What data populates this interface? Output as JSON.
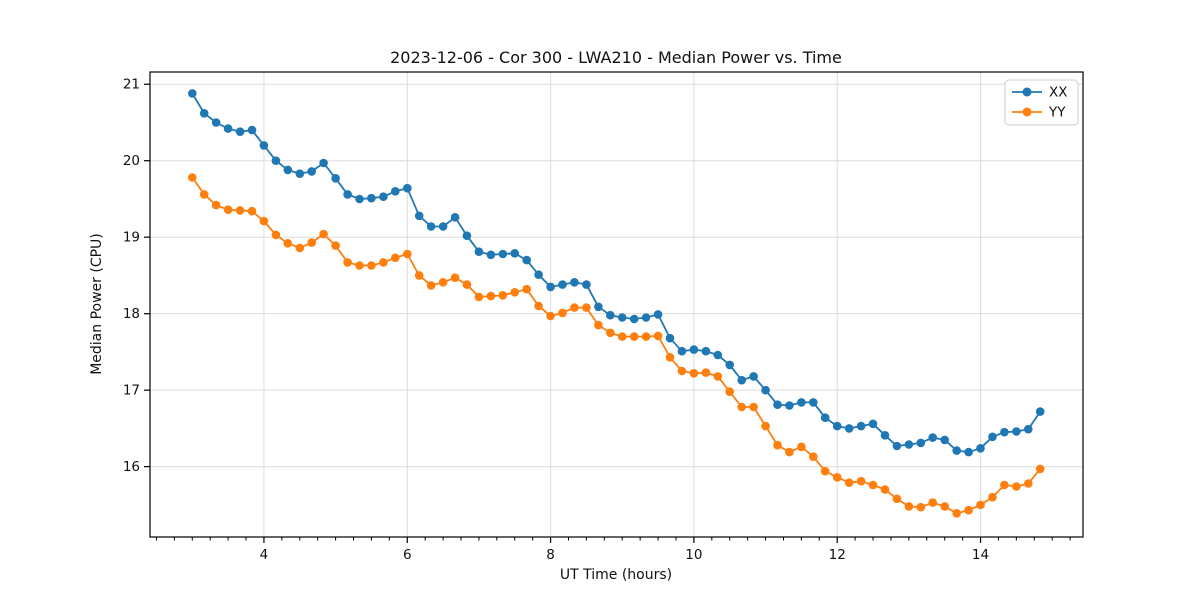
{
  "chart_data": {
    "type": "line",
    "title": "2023-12-06 - Cor 300 - LWA210 - Median Power vs. Time",
    "xlabel": "UT Time (hours)",
    "ylabel": "Median Power (CPU)",
    "xlim": [
      2.41,
      15.43
    ],
    "ylim": [
      15.08,
      21.16
    ],
    "xticks": [
      4,
      6,
      8,
      10,
      12,
      14
    ],
    "yticks": [
      16,
      17,
      18,
      19,
      20,
      21
    ],
    "x_minor_step": 0.25,
    "grid": true,
    "grid_color": "#dddddd",
    "legend_position": "upper right",
    "marker": "o",
    "x": [
      3.0,
      3.167,
      3.333,
      3.5,
      3.667,
      3.833,
      4.0,
      4.167,
      4.333,
      4.5,
      4.667,
      4.833,
      5.0,
      5.167,
      5.333,
      5.5,
      5.667,
      5.833,
      6.0,
      6.167,
      6.333,
      6.5,
      6.667,
      6.833,
      7.0,
      7.167,
      7.333,
      7.5,
      7.667,
      7.833,
      8.0,
      8.167,
      8.333,
      8.5,
      8.667,
      8.833,
      9.0,
      9.167,
      9.333,
      9.5,
      9.667,
      9.833,
      10.0,
      10.167,
      10.333,
      10.5,
      10.667,
      10.833,
      11.0,
      11.167,
      11.333,
      11.5,
      11.667,
      11.833,
      12.0,
      12.167,
      12.333,
      12.5,
      12.667,
      12.833,
      13.0,
      13.167,
      13.333,
      13.5,
      13.667,
      13.833,
      14.0,
      14.167,
      14.333,
      14.5,
      14.667,
      14.833
    ],
    "series": [
      {
        "name": "XX",
        "color": "#1f77b4",
        "values": [
          20.88,
          20.62,
          20.5,
          20.42,
          20.38,
          20.4,
          20.2,
          20.0,
          19.88,
          19.83,
          19.86,
          19.97,
          19.77,
          19.56,
          19.5,
          19.51,
          19.53,
          19.6,
          19.64,
          19.28,
          19.14,
          19.14,
          19.26,
          19.02,
          18.81,
          18.77,
          18.78,
          18.79,
          18.7,
          18.51,
          18.35,
          18.38,
          18.41,
          18.38,
          18.09,
          17.98,
          17.95,
          17.93,
          17.95,
          17.99,
          17.68,
          17.51,
          17.53,
          17.51,
          17.46,
          17.33,
          17.13,
          17.18,
          17.0,
          16.81,
          16.8,
          16.84,
          16.84,
          16.64,
          16.53,
          16.5,
          16.53,
          16.56,
          16.41,
          16.27,
          16.29,
          16.31,
          16.38,
          16.35,
          16.21,
          16.19,
          16.24,
          16.39,
          16.45,
          16.46,
          16.49,
          16.72
        ]
      },
      {
        "name": "YY",
        "color": "#ff7f0e",
        "values": [
          19.78,
          19.56,
          19.42,
          19.36,
          19.35,
          19.34,
          19.21,
          19.03,
          18.92,
          18.86,
          18.93,
          19.04,
          18.89,
          18.67,
          18.63,
          18.63,
          18.67,
          18.73,
          18.78,
          18.5,
          18.37,
          18.41,
          18.47,
          18.38,
          18.22,
          18.23,
          18.24,
          18.28,
          18.32,
          18.1,
          17.97,
          18.01,
          18.08,
          18.08,
          17.85,
          17.75,
          17.7,
          17.7,
          17.7,
          17.71,
          17.43,
          17.25,
          17.22,
          17.23,
          17.18,
          16.98,
          16.78,
          16.78,
          16.53,
          16.28,
          16.19,
          16.26,
          16.13,
          15.94,
          15.86,
          15.79,
          15.81,
          15.76,
          15.7,
          15.58,
          15.48,
          15.47,
          15.53,
          15.48,
          15.39,
          15.43,
          15.5,
          15.6,
          15.76,
          15.74,
          15.78,
          15.97
        ]
      }
    ]
  }
}
